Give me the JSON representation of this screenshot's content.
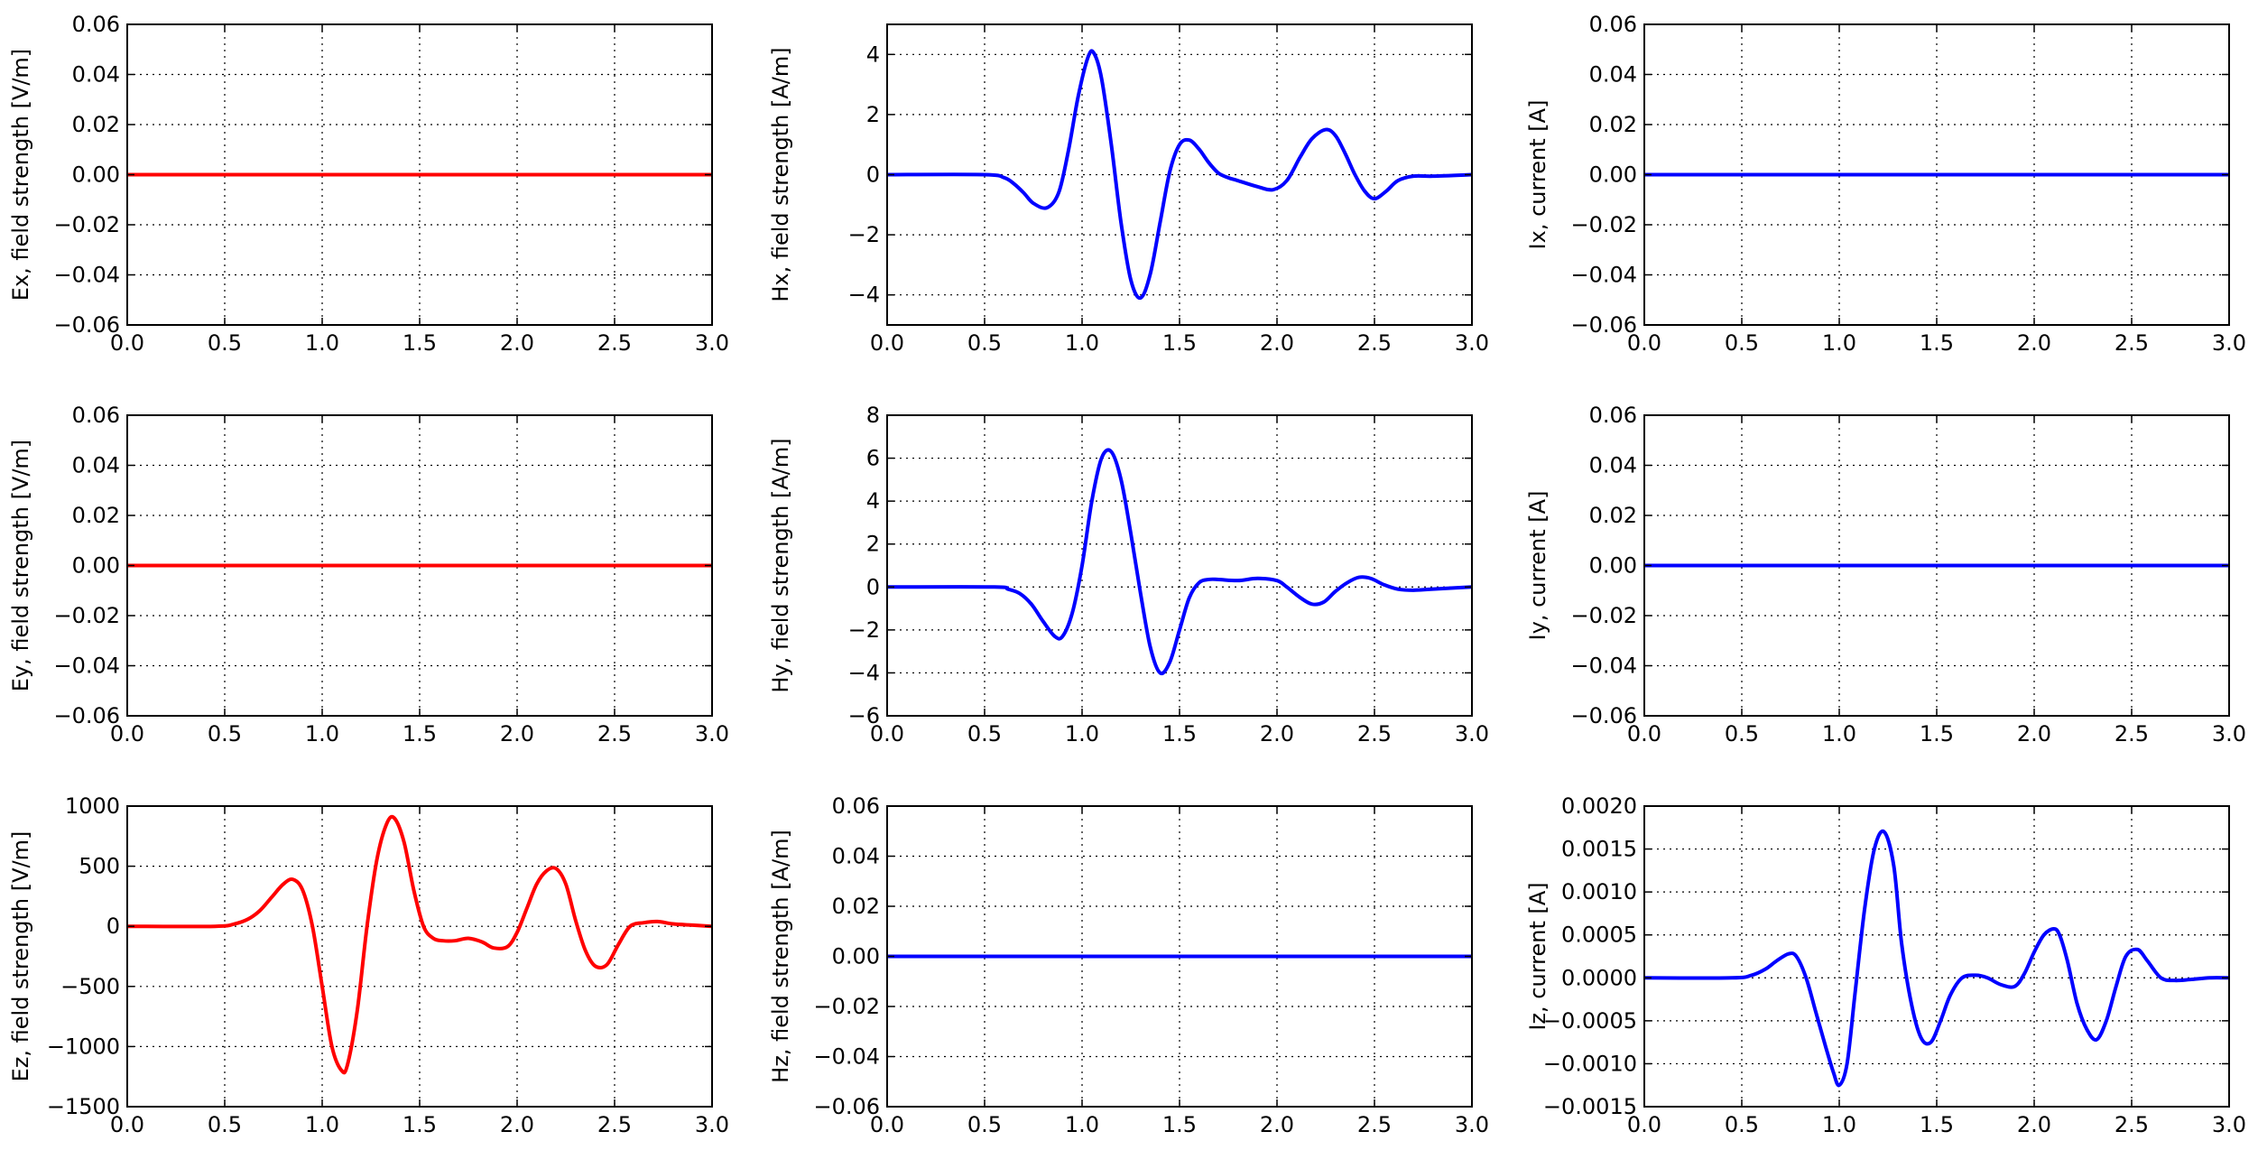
{
  "figure": {
    "colors": {
      "red": "#ff0000",
      "blue": "#0000ff",
      "grid": "#000000",
      "frame": "#000000"
    }
  },
  "chart_data": [
    {
      "id": "ex",
      "type": "line",
      "ylabel": "Ex, field strength [V/m]",
      "xlim": [
        0,
        3
      ],
      "ylim": [
        -0.06,
        0.06
      ],
      "xticks": [
        0,
        0.5,
        1,
        1.5,
        2,
        2.5,
        3
      ],
      "xtick_labels": [
        "0.0",
        "0.5",
        "1.0",
        "1.5",
        "2.0",
        "2.5",
        "3.0"
      ],
      "yticks": [
        -0.06,
        -0.04,
        -0.02,
        0,
        0.02,
        0.04,
        0.06
      ],
      "ytick_labels": [
        "−0.06",
        "−0.04",
        "−0.02",
        "0.00",
        "0.02",
        "0.04",
        "0.06"
      ],
      "grid": true,
      "color": "#ff0000",
      "series": [
        {
          "x": [
            0,
            3
          ],
          "y": [
            0,
            0
          ]
        }
      ]
    },
    {
      "id": "hx",
      "type": "line",
      "ylabel": "Hx, field strength [A/m]",
      "xlim": [
        0,
        3
      ],
      "ylim": [
        -5,
        5
      ],
      "xticks": [
        0,
        0.5,
        1,
        1.5,
        2,
        2.5,
        3
      ],
      "xtick_labels": [
        "0.0",
        "0.5",
        "1.0",
        "1.5",
        "2.0",
        "2.5",
        "3.0"
      ],
      "yticks": [
        -4,
        -2,
        0,
        2,
        4
      ],
      "ytick_labels": [
        "−4",
        "−2",
        "0",
        "2",
        "4"
      ],
      "grid": true,
      "color": "#0000ff",
      "series": [
        {
          "x": [
            0,
            0.5,
            0.6,
            0.65,
            0.7,
            0.75,
            0.82,
            0.88,
            0.93,
            0.98,
            1.03,
            1.06,
            1.1,
            1.15,
            1.2,
            1.25,
            1.3,
            1.35,
            1.4,
            1.45,
            1.5,
            1.55,
            1.6,
            1.65,
            1.7,
            1.75,
            1.8,
            1.9,
            1.98,
            2.05,
            2.12,
            2.18,
            2.25,
            2.3,
            2.35,
            2.4,
            2.45,
            2.5,
            2.56,
            2.62,
            2.7,
            2.8,
            3.0
          ],
          "y": [
            0,
            0,
            -0.1,
            -0.3,
            -0.6,
            -0.95,
            -1.1,
            -0.6,
            0.8,
            2.6,
            3.9,
            4.05,
            3.2,
            1.0,
            -1.6,
            -3.5,
            -4.1,
            -3.3,
            -1.6,
            0.1,
            1.0,
            1.15,
            0.85,
            0.4,
            0.05,
            -0.1,
            -0.2,
            -0.4,
            -0.5,
            -0.2,
            0.6,
            1.2,
            1.5,
            1.3,
            0.7,
            0.0,
            -0.55,
            -0.8,
            -0.55,
            -0.2,
            -0.05,
            -0.05,
            0
          ]
        }
      ]
    },
    {
      "id": "ix",
      "type": "line",
      "ylabel": "Ix, current [A]",
      "xlim": [
        0,
        3
      ],
      "ylim": [
        -0.06,
        0.06
      ],
      "xticks": [
        0,
        0.5,
        1,
        1.5,
        2,
        2.5,
        3
      ],
      "xtick_labels": [
        "0.0",
        "0.5",
        "1.0",
        "1.5",
        "2.0",
        "2.5",
        "3.0"
      ],
      "yticks": [
        -0.06,
        -0.04,
        -0.02,
        0,
        0.02,
        0.04,
        0.06
      ],
      "ytick_labels": [
        "−0.06",
        "−0.04",
        "−0.02",
        "0.00",
        "0.02",
        "0.04",
        "0.06"
      ],
      "grid": true,
      "color": "#0000ff",
      "series": [
        {
          "x": [
            0,
            3
          ],
          "y": [
            0,
            0
          ]
        }
      ]
    },
    {
      "id": "ey",
      "type": "line",
      "ylabel": "Ey, field strength [V/m]",
      "xlim": [
        0,
        3
      ],
      "ylim": [
        -0.06,
        0.06
      ],
      "xticks": [
        0,
        0.5,
        1,
        1.5,
        2,
        2.5,
        3
      ],
      "xtick_labels": [
        "0.0",
        "0.5",
        "1.0",
        "1.5",
        "2.0",
        "2.5",
        "3.0"
      ],
      "yticks": [
        -0.06,
        -0.04,
        -0.02,
        0,
        0.02,
        0.04,
        0.06
      ],
      "ytick_labels": [
        "−0.06",
        "−0.04",
        "−0.02",
        "0.00",
        "0.02",
        "0.04",
        "0.06"
      ],
      "grid": true,
      "color": "#ff0000",
      "series": [
        {
          "x": [
            0,
            3
          ],
          "y": [
            0,
            0
          ]
        }
      ]
    },
    {
      "id": "hy",
      "type": "line",
      "ylabel": "Hy, field strength [A/m]",
      "xlim": [
        0,
        3
      ],
      "ylim": [
        -6,
        8
      ],
      "xticks": [
        0,
        0.5,
        1,
        1.5,
        2,
        2.5,
        3
      ],
      "xtick_labels": [
        "0.0",
        "0.5",
        "1.0",
        "1.5",
        "2.0",
        "2.5",
        "3.0"
      ],
      "yticks": [
        -6,
        -4,
        -2,
        0,
        2,
        4,
        6,
        8
      ],
      "ytick_labels": [
        "−6",
        "−4",
        "−2",
        "0",
        "2",
        "4",
        "6",
        "8"
      ],
      "grid": true,
      "color": "#0000ff",
      "series": [
        {
          "x": [
            0,
            0.55,
            0.62,
            0.68,
            0.74,
            0.8,
            0.86,
            0.9,
            0.95,
            1.0,
            1.05,
            1.1,
            1.15,
            1.2,
            1.25,
            1.3,
            1.35,
            1.4,
            1.45,
            1.5,
            1.55,
            1.6,
            1.65,
            1.7,
            1.8,
            1.9,
            2.0,
            2.05,
            2.12,
            2.18,
            2.24,
            2.3,
            2.36,
            2.42,
            2.48,
            2.55,
            2.62,
            2.7,
            2.8,
            3.0
          ],
          "y": [
            0,
            0,
            -0.1,
            -0.3,
            -0.8,
            -1.6,
            -2.3,
            -2.3,
            -1.2,
            1.0,
            4.0,
            6.0,
            6.3,
            5.0,
            2.5,
            -0.3,
            -2.8,
            -4.0,
            -3.5,
            -2.0,
            -0.5,
            0.2,
            0.35,
            0.35,
            0.3,
            0.4,
            0.3,
            0.0,
            -0.5,
            -0.8,
            -0.7,
            -0.2,
            0.2,
            0.45,
            0.4,
            0.1,
            -0.1,
            -0.15,
            -0.1,
            0
          ]
        }
      ]
    },
    {
      "id": "iy",
      "type": "line",
      "ylabel": "Iy, current [A]",
      "xlim": [
        0,
        3
      ],
      "ylim": [
        -0.06,
        0.06
      ],
      "xticks": [
        0,
        0.5,
        1,
        1.5,
        2,
        2.5,
        3
      ],
      "xtick_labels": [
        "0.0",
        "0.5",
        "1.0",
        "1.5",
        "2.0",
        "2.5",
        "3.0"
      ],
      "yticks": [
        -0.06,
        -0.04,
        -0.02,
        0,
        0.02,
        0.04,
        0.06
      ],
      "ytick_labels": [
        "−0.06",
        "−0.04",
        "−0.02",
        "0.00",
        "0.02",
        "0.04",
        "0.06"
      ],
      "grid": true,
      "color": "#0000ff",
      "series": [
        {
          "x": [
            0,
            3
          ],
          "y": [
            0,
            0
          ]
        }
      ]
    },
    {
      "id": "ez",
      "type": "line",
      "ylabel": "Ez, field strength [V/m]",
      "xlim": [
        0,
        3
      ],
      "ylim": [
        -1500,
        1000
      ],
      "xticks": [
        0,
        0.5,
        1,
        1.5,
        2,
        2.5,
        3
      ],
      "xtick_labels": [
        "0.0",
        "0.5",
        "1.0",
        "1.5",
        "2.0",
        "2.5",
        "3.0"
      ],
      "yticks": [
        -1500,
        -1000,
        -500,
        0,
        500,
        1000
      ],
      "ytick_labels": [
        "−1500",
        "−1000",
        "−500",
        "0",
        "500",
        "1000"
      ],
      "grid": true,
      "color": "#ff0000",
      "series": [
        {
          "x": [
            0,
            0.45,
            0.55,
            0.62,
            0.68,
            0.74,
            0.8,
            0.85,
            0.9,
            0.95,
            1.0,
            1.05,
            1.1,
            1.13,
            1.18,
            1.23,
            1.28,
            1.33,
            1.37,
            1.42,
            1.47,
            1.52,
            1.57,
            1.62,
            1.68,
            1.75,
            1.82,
            1.88,
            1.95,
            2.0,
            2.05,
            2.1,
            2.15,
            2.2,
            2.25,
            2.3,
            2.35,
            2.4,
            2.46,
            2.52,
            2.58,
            2.65,
            2.72,
            2.8,
            2.9,
            3.0
          ],
          "y": [
            0,
            0,
            20,
            60,
            130,
            240,
            350,
            390,
            300,
            0,
            -500,
            -1000,
            -1200,
            -1150,
            -700,
            0,
            550,
            850,
            900,
            700,
            300,
            0,
            -100,
            -120,
            -120,
            -100,
            -130,
            -180,
            -170,
            -50,
            150,
            350,
            460,
            480,
            350,
            50,
            -200,
            -330,
            -320,
            -150,
            0,
            30,
            40,
            20,
            10,
            0
          ]
        }
      ]
    },
    {
      "id": "hz",
      "type": "line",
      "ylabel": "Hz, field strength [A/m]",
      "xlim": [
        0,
        3
      ],
      "ylim": [
        -0.06,
        0.06
      ],
      "xticks": [
        0,
        0.5,
        1,
        1.5,
        2,
        2.5,
        3
      ],
      "xtick_labels": [
        "0.0",
        "0.5",
        "1.0",
        "1.5",
        "2.0",
        "2.5",
        "3.0"
      ],
      "yticks": [
        -0.06,
        -0.04,
        -0.02,
        0,
        0.02,
        0.04,
        0.06
      ],
      "ytick_labels": [
        "−0.06",
        "−0.04",
        "−0.02",
        "0.00",
        "0.02",
        "0.04",
        "0.06"
      ],
      "grid": true,
      "color": "#0000ff",
      "series": [
        {
          "x": [
            0,
            3
          ],
          "y": [
            0,
            0
          ]
        }
      ]
    },
    {
      "id": "iz",
      "type": "line",
      "ylabel": "Iz, current [A]",
      "xlim": [
        0,
        3
      ],
      "ylim": [
        -0.0015,
        0.002
      ],
      "xticks": [
        0,
        0.5,
        1,
        1.5,
        2,
        2.5,
        3
      ],
      "xtick_labels": [
        "0.0",
        "0.5",
        "1.0",
        "1.5",
        "2.0",
        "2.5",
        "3.0"
      ],
      "yticks": [
        -0.0015,
        -0.001,
        -0.0005,
        0,
        0.0005,
        0.001,
        0.0015,
        0.002
      ],
      "ytick_labels": [
        "−0.0015",
        "−0.0010",
        "−0.0005",
        "0.0000",
        "0.0005",
        "0.0010",
        "0.0015",
        "0.0020"
      ],
      "grid": true,
      "color": "#0000ff",
      "series": [
        {
          "x": [
            0,
            0.45,
            0.55,
            0.62,
            0.68,
            0.74,
            0.78,
            0.83,
            0.88,
            0.93,
            0.97,
            1.0,
            1.04,
            1.08,
            1.13,
            1.18,
            1.23,
            1.28,
            1.32,
            1.37,
            1.42,
            1.47,
            1.52,
            1.57,
            1.63,
            1.7,
            1.76,
            1.83,
            1.9,
            1.95,
            2.0,
            2.05,
            2.1,
            2.13,
            2.17,
            2.22,
            2.27,
            2.32,
            2.37,
            2.42,
            2.47,
            2.53,
            2.58,
            2.65,
            2.72,
            2.8,
            2.9,
            3.0
          ],
          "y": [
            0,
            0,
            3e-05,
            0.0001,
            0.0002,
            0.00028,
            0.00025,
            0.0,
            -0.0004,
            -0.0008,
            -0.0011,
            -0.00125,
            -0.001,
            -0.0002,
            0.0008,
            0.0015,
            0.0017,
            0.0013,
            0.0004,
            -0.0003,
            -0.0007,
            -0.00075,
            -0.0005,
            -0.0002,
            0.0,
            3e-05,
            0.0,
            -8e-05,
            -0.0001,
            5e-05,
            0.0003,
            0.0005,
            0.00057,
            0.0005,
            0.0002,
            -0.0003,
            -0.0006,
            -0.00072,
            -0.0005,
            -0.0001,
            0.00025,
            0.00033,
            0.0002,
            0.0,
            -3e-05,
            -2e-05,
            0.0,
            0
          ]
        }
      ]
    }
  ]
}
